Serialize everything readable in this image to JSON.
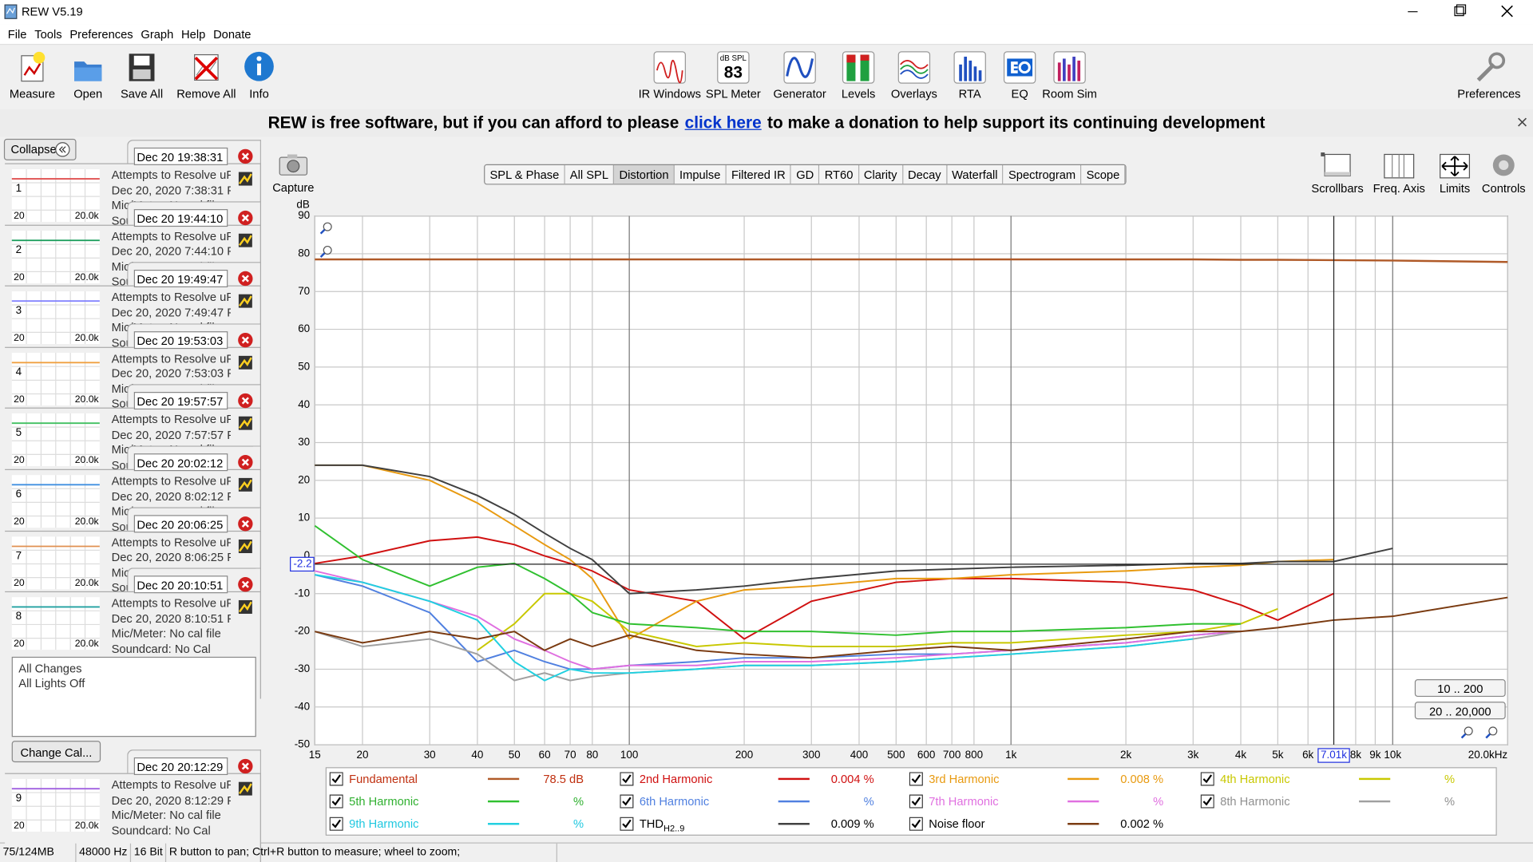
{
  "window": {
    "title": "REW V5.19"
  },
  "menu": [
    "File",
    "Tools",
    "Preferences",
    "Graph",
    "Help",
    "Donate"
  ],
  "toolbar_left": [
    "Measure",
    "Open",
    "Save All",
    "Remove All",
    "Info"
  ],
  "toolbar_center": [
    "IR Windows",
    "SPL Meter",
    "Generator",
    "Levels",
    "Overlays",
    "RTA",
    "EQ",
    "Room Sim"
  ],
  "spl_icon": {
    "unit": "dB SPL",
    "reading": "83"
  },
  "toolbar_right": "Preferences",
  "banner": {
    "before": "REW is free software, but if you can afford to please",
    "link": "click here",
    "after": "to make a donation to help support its continuing development"
  },
  "sidebar": {
    "collapse": "Collapse",
    "measurements": [
      {
        "number": 1,
        "tab": "Dec 20 19:38:31",
        "title": "Attempts to Resolve uPv",
        "date": "Dec 20, 2020 7:38:31 PM",
        "mic": "Mic/Meter: No cal file",
        "soundcard": "Soundcard: No Cal",
        "axis_min": "20",
        "axis_max": "20.0k",
        "color": "#e05050"
      },
      {
        "number": 2,
        "tab": "Dec 20 19:44:10",
        "title": "Attempts to Resolve uPv",
        "date": "Dec 20, 2020 7:44:10 PM",
        "mic": "Mic/Meter: No cal file",
        "soundcard": "Soundcard: No Cal",
        "axis_min": "20",
        "axis_max": "20.0k",
        "color": "#20a060"
      },
      {
        "number": 3,
        "tab": "Dec 20 19:49:47",
        "title": "Attempts to Resolve uPv",
        "date": "Dec 20, 2020 7:49:47 PM",
        "mic": "Mic/Meter: No cal file",
        "soundcard": "Soundcard: No Cal",
        "axis_min": "20",
        "axis_max": "20.0k",
        "color": "#8080ff"
      },
      {
        "number": 4,
        "tab": "Dec 20 19:53:03",
        "title": "Attempts to Resolve uPv",
        "date": "Dec 20, 2020 7:53:03 PM",
        "mic": "Mic/Meter: No cal file",
        "soundcard": "Soundcard: No Cal",
        "axis_min": "20",
        "axis_max": "20.0k",
        "color": "#f0a040"
      },
      {
        "number": 5,
        "tab": "Dec 20 19:57:57",
        "title": "Attempts to Resolve uPv",
        "date": "Dec 20, 2020 7:57:57 PM",
        "mic": "Mic/Meter: No cal file",
        "soundcard": "Soundcard: No Cal",
        "axis_min": "20",
        "axis_max": "20.0k",
        "color": "#40c060"
      },
      {
        "number": 6,
        "tab": "Dec 20 20:02:12",
        "title": "Attempts to Resolve uPv",
        "date": "Dec 20, 2020 8:02:12 PM",
        "mic": "Mic/Meter: No cal file",
        "soundcard": "Soundcard: No Cal",
        "axis_min": "20",
        "axis_max": "20.0k",
        "color": "#4090e0"
      },
      {
        "number": 7,
        "tab": "Dec 20 20:06:25",
        "title": "Attempts to Resolve uPv",
        "date": "Dec 20, 2020 8:06:25 PM",
        "mic": "Mic/Meter: No cal file",
        "soundcard": "Soundcard: No Cal",
        "axis_min": "20",
        "axis_max": "20.0k",
        "color": "#e09050"
      },
      {
        "number": 8,
        "tab": "Dec 20 20:10:51",
        "title": "Attempts to Resolve uPv",
        "date": "Dec 20, 2020 8:10:51 PM",
        "mic": "Mic/Meter: No cal file",
        "soundcard": "Soundcard: No Cal",
        "axis_min": "20",
        "axis_max": "20.0k",
        "color": "#20a0a0"
      },
      {
        "number": 9,
        "tab": "Dec 20 20:12:29",
        "title": "Attempts to Resolve uPv",
        "date": "Dec 20, 2020 8:12:29 PM",
        "mic": "Mic/Meter: No cal file",
        "soundcard": "Soundcard: No Cal",
        "axis_min": "20",
        "axis_max": "20.0k",
        "color": "#a060e0"
      }
    ],
    "notes": [
      "All Changes",
      "All Lights Off"
    ],
    "change_cal": "Change Cal..."
  },
  "capture": "Capture",
  "tabs": [
    "SPL & Phase",
    "All SPL",
    "Distortion",
    "Impulse",
    "Filtered IR",
    "GD",
    "RT60",
    "Clarity",
    "Decay",
    "Waterfall",
    "Spectrogram",
    "Scope"
  ],
  "selected_tab": 2,
  "graph_tools": [
    "Scrollbars",
    "Freq. Axis",
    "Limits",
    "Controls"
  ],
  "graph": {
    "y_unit": "dB",
    "log_x": true,
    "xlim": [
      15,
      20000
    ],
    "ylim": [
      -50,
      90
    ],
    "yticks": [
      90,
      80,
      70,
      60,
      50,
      40,
      30,
      20,
      10,
      0,
      -10,
      -20,
      -30,
      -40,
      -50
    ],
    "xticks": [
      15,
      20,
      30,
      40,
      50,
      60,
      70,
      80,
      100,
      200,
      300,
      400,
      500,
      600,
      700,
      800,
      {
        "value": 1000,
        "label": "1k"
      },
      {
        "value": 2000,
        "label": "2k"
      },
      {
        "value": 3000,
        "label": "3k"
      },
      {
        "value": 4000,
        "label": "4k"
      },
      {
        "value": 5000,
        "label": "5k"
      },
      {
        "value": 6000,
        "label": "6k"
      },
      {
        "value": 8000,
        "label": "8k"
      },
      {
        "value": 9000,
        "label": "9k"
      },
      {
        "value": 10000,
        "label": "10k"
      },
      {
        "value": 20000,
        "label": "20.0kHz"
      }
    ],
    "cursor_x": {
      "value": 7010,
      "label": "7.01k"
    },
    "cursor_y": {
      "value": -2.2,
      "label": "-2.2"
    },
    "range_buttons": [
      "10 .. 200",
      "20 .. 20,000"
    ],
    "x": [
      15,
      20,
      30,
      40,
      50,
      60,
      70,
      80,
      100,
      150,
      200,
      300,
      500,
      700,
      1000,
      2000,
      3000,
      4000,
      5000,
      7000,
      10000,
      20000
    ],
    "series": [
      {
        "name": "Fundamental",
        "color": "#b05a28",
        "label_color": "#c03010",
        "value_label": "78.5 dB",
        "values": [
          78.5,
          78.5,
          78.5,
          78.5,
          78.5,
          78.5,
          78.5,
          78.5,
          78.5,
          78.5,
          78.5,
          78.5,
          78.5,
          78.5,
          78.5,
          78.5,
          78.5,
          78.4,
          78.4,
          78.3,
          78.2,
          77.8
        ]
      },
      {
        "name": "2nd Harmonic",
        "color": "#d01010",
        "label_color": "#d01010",
        "value_label": "0.004 %",
        "values": [
          -2,
          0,
          4,
          5,
          3,
          0,
          -2,
          -4,
          -9,
          -12,
          -22,
          -12,
          -7,
          -6,
          -6,
          -7,
          -9,
          -13,
          -17,
          -10,
          null,
          null
        ]
      },
      {
        "name": "3rd Harmonic",
        "color": "#e89a10",
        "label_color": "#e89a10",
        "value_label": "0.008 %",
        "values": [
          24,
          24,
          20,
          14,
          8,
          3,
          -1,
          -6,
          -22,
          -12,
          -9,
          -8,
          -6,
          -6,
          -5,
          -4,
          -3,
          -2.5,
          -1.5,
          -1,
          null,
          null
        ]
      },
      {
        "name": "4th Harmonic",
        "color": "#c8c800",
        "label_color": "#c8c800",
        "value_label": "%",
        "values": [
          null,
          null,
          null,
          -25,
          -18,
          -10,
          -10,
          -12,
          -20,
          -24,
          -23,
          -24,
          -24,
          -23,
          -23,
          -21,
          -20,
          -18,
          -14,
          null,
          null,
          null
        ]
      },
      {
        "name": "5th Harmonic",
        "color": "#30c030",
        "label_color": "#30b030",
        "value_label": "%",
        "values": [
          8,
          -1,
          -8,
          -3,
          -2,
          -6,
          -10,
          -15,
          -18,
          -19,
          -20,
          -20,
          -21,
          -20,
          -20,
          -19,
          -18,
          -18,
          null,
          null,
          null,
          null
        ]
      },
      {
        "name": "6th Harmonic",
        "color": "#5080e0",
        "label_color": "#5080e0",
        "value_label": "%",
        "values": [
          -5,
          -8,
          -15,
          -28,
          -25,
          -28,
          -30,
          -30,
          -29,
          -28,
          -27,
          -27,
          -26,
          -26,
          -25,
          -23,
          -21,
          -20,
          null,
          null,
          null,
          null
        ]
      },
      {
        "name": "7th Harmonic",
        "color": "#e070e0",
        "label_color": "#e070e0",
        "value_label": "%",
        "values": [
          -4,
          -7,
          -12,
          -16,
          -22,
          -25,
          -28,
          -30,
          -29,
          -29,
          -28,
          -28,
          -27,
          -26,
          -25,
          -23,
          -21,
          -20,
          null,
          null,
          null,
          null
        ]
      },
      {
        "name": "8th Harmonic",
        "color": "#a0a0a0",
        "label_color": "#909090",
        "value_label": "%",
        "values": [
          -20,
          -24,
          -22,
          -26,
          -33,
          -31,
          -33,
          -32,
          -31,
          -30,
          -29,
          -29,
          -28,
          -27,
          -26,
          -24,
          -22,
          -20,
          null,
          null,
          null,
          null
        ]
      },
      {
        "name": "9th Harmonic",
        "color": "#20d0e0",
        "label_color": "#20c8e0",
        "value_label": "%",
        "values": [
          -5,
          -7,
          -12,
          -17,
          -28,
          -33,
          -30,
          -31,
          -31,
          -30,
          -29,
          -29,
          -28,
          -27,
          -26,
          -24,
          -22,
          null,
          null,
          null,
          null,
          null
        ]
      },
      {
        "name": "THD",
        "name_sub": "H2..9",
        "color": "#404040",
        "label_color": "#000000",
        "value_label": "0.009 %",
        "values": [
          24,
          24,
          21,
          16,
          11,
          6,
          2,
          -1,
          -10,
          -9,
          -8,
          -6,
          -4,
          -3.5,
          -3,
          -2.5,
          -2,
          -2,
          -1.5,
          -1.5,
          2,
          null
        ]
      },
      {
        "name": "Noise floor",
        "color": "#7a3a10",
        "label_color": "#000000",
        "value_label": "0.002 %",
        "values": [
          -20,
          -23,
          -20,
          -22,
          -20,
          -25,
          -22,
          -24,
          -21,
          -25,
          -26,
          -27,
          -25,
          -24,
          -25,
          -22,
          -20,
          -20,
          -19,
          -17,
          -16,
          -11
        ]
      }
    ]
  },
  "status": [
    "75/124MB",
    "48000 Hz",
    "16 Bit",
    "R button to pan; Ctrl+R button to measure; wheel to zoom;"
  ]
}
